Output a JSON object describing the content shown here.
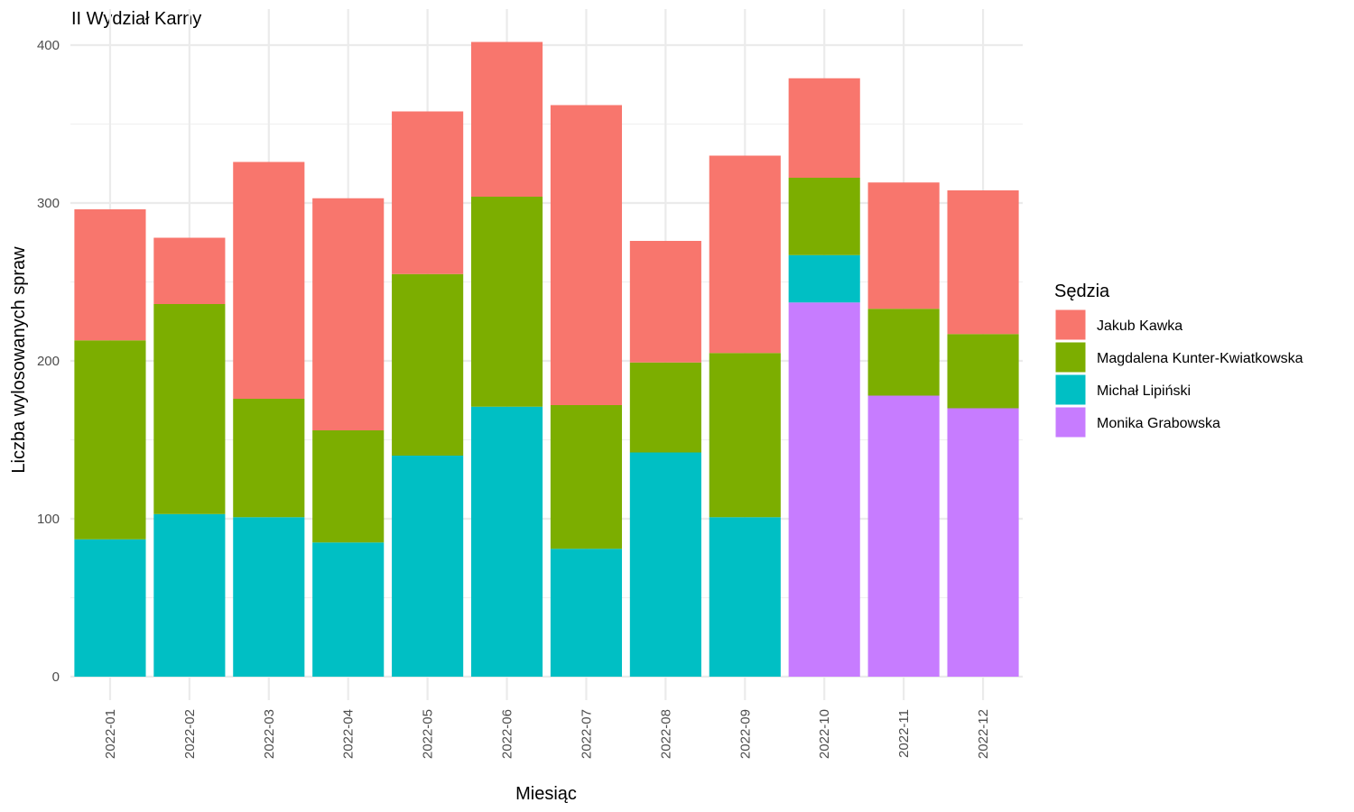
{
  "chart_data": {
    "type": "bar",
    "stacked": true,
    "title": "II Wydział Karny",
    "xlabel": "Miesiąc",
    "ylabel": "Liczba wylosowanych spraw",
    "ylim": [
      0,
      420
    ],
    "yticks": [
      0,
      100,
      200,
      300,
      400
    ],
    "grid": true,
    "legend_title": "Sędzia",
    "legend_position": "right",
    "categories": [
      "2022-01",
      "2022-02",
      "2022-03",
      "2022-04",
      "2022-05",
      "2022-06",
      "2022-07",
      "2022-08",
      "2022-09",
      "2022-10",
      "2022-11",
      "2022-12"
    ],
    "series": [
      {
        "name": "Jakub Kawka",
        "color": "#F8766D",
        "values": [
          83,
          42,
          150,
          147,
          103,
          98,
          190,
          77,
          125,
          63,
          80,
          91
        ]
      },
      {
        "name": "Magdalena Kunter-Kwiatkowska",
        "color": "#7CAE00",
        "values": [
          126,
          133,
          75,
          71,
          115,
          133,
          91,
          57,
          104,
          49,
          55,
          47
        ]
      },
      {
        "name": "Michał Lipiński",
        "color": "#00BFC4",
        "values": [
          87,
          103,
          101,
          85,
          140,
          171,
          81,
          142,
          101,
          30,
          0,
          0
        ]
      },
      {
        "name": "Monika Grabowska",
        "color": "#C77CFF",
        "values": [
          0,
          0,
          0,
          0,
          0,
          0,
          0,
          0,
          0,
          237,
          178,
          170
        ]
      }
    ],
    "stack_order_bottom_to_top": [
      "Monika Grabowska",
      "Michał Lipiński",
      "Magdalena Kunter-Kwiatkowska",
      "Jakub Kawka"
    ]
  }
}
